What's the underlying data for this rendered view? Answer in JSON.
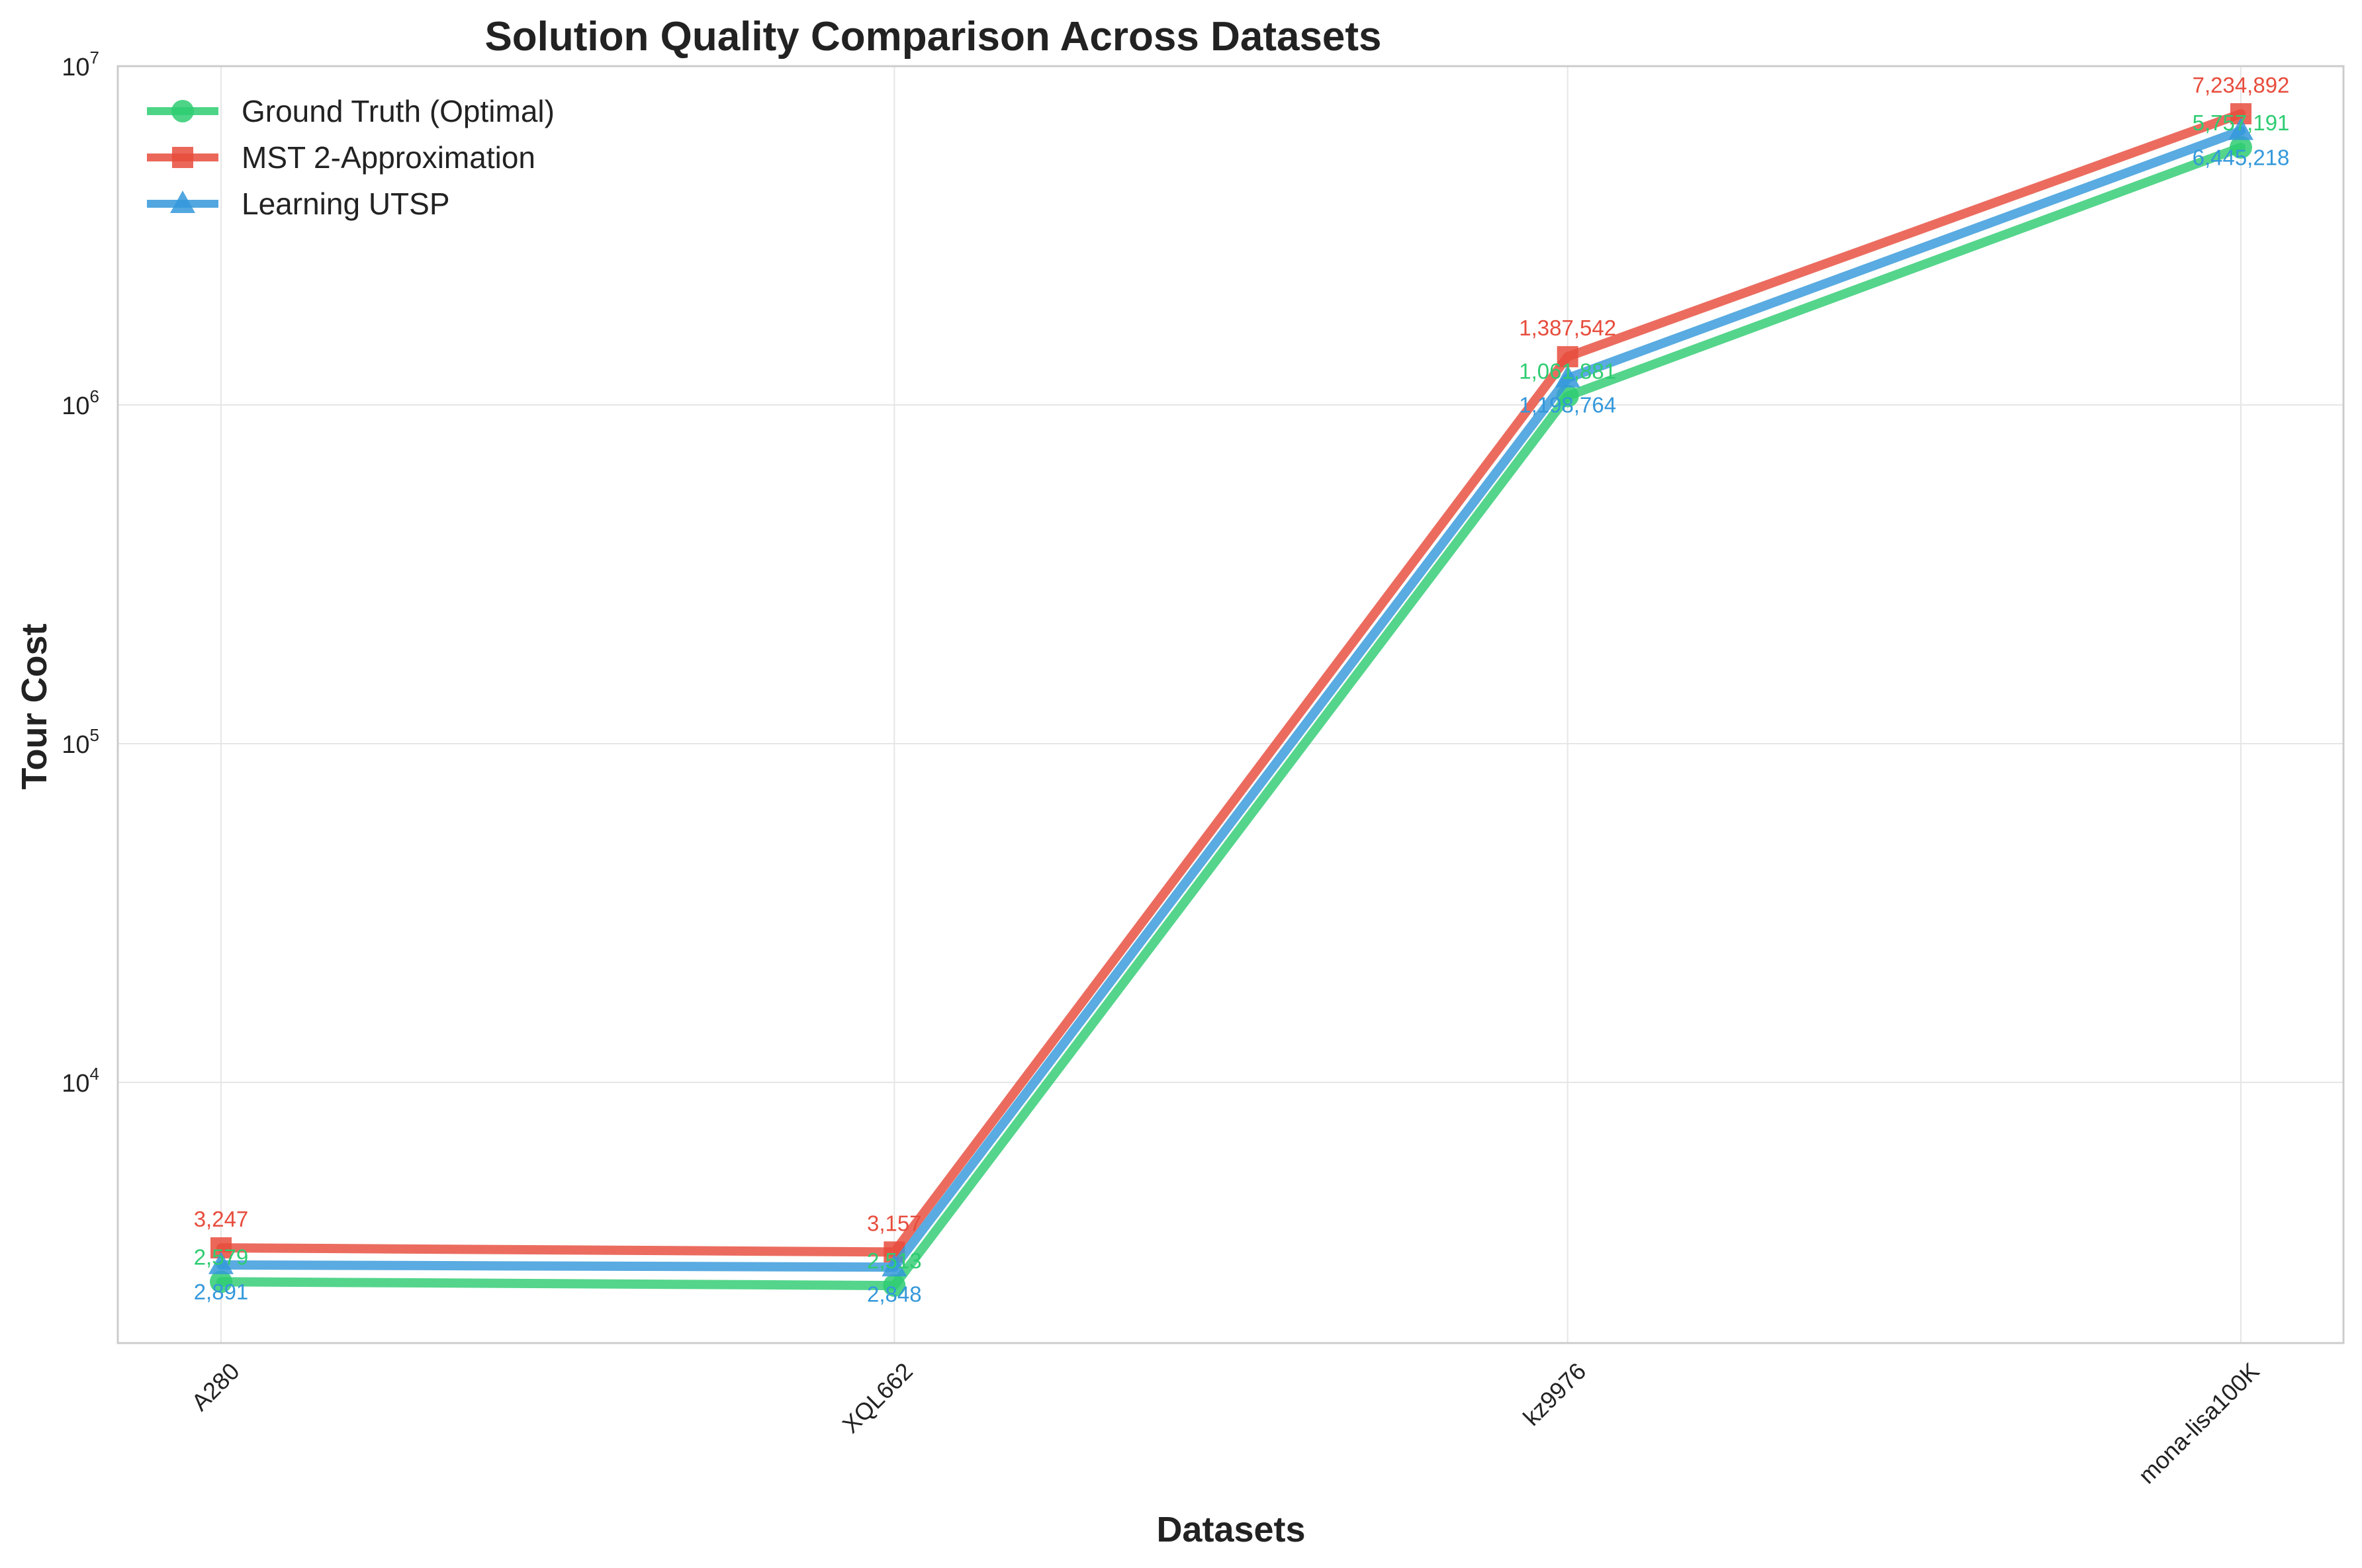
{
  "chart_data": {
    "type": "line",
    "title": "Solution Quality Comparison Across Datasets",
    "xlabel": "Datasets",
    "ylabel": "Tour Cost",
    "yscale": "log",
    "ylim": [
      1700,
      10000000
    ],
    "yticks": [
      {
        "base": "10",
        "exp": "4",
        "value": 10000
      },
      {
        "base": "10",
        "exp": "5",
        "value": 100000
      },
      {
        "base": "10",
        "exp": "6",
        "value": 1000000
      },
      {
        "base": "10",
        "exp": "7",
        "value": 10000000
      }
    ],
    "categories": [
      "A280",
      "XQL662",
      "kz9976",
      "mona-lisa100K"
    ],
    "grid": true,
    "legend_position": "top-left",
    "series": [
      {
        "name": "Ground Truth (Optimal)",
        "marker": "circle",
        "color": "#2ecc71",
        "values": [
          2579,
          2513,
          1061881,
          5757191
        ],
        "labels": [
          "2,579",
          "2,513",
          "1,061,881",
          "5,757,191"
        ]
      },
      {
        "name": "MST 2-Approximation",
        "marker": "square",
        "color": "#e74c3c",
        "values": [
          3247,
          3157,
          1387542,
          7234892
        ],
        "labels": [
          "3,247",
          "3,157",
          "1,387,542",
          "7,234,892"
        ]
      },
      {
        "name": "Learning UTSP",
        "marker": "triangle",
        "color": "#3498db",
        "values": [
          2891,
          2848,
          1198764,
          6445218
        ],
        "labels": [
          "2,891",
          "2,848",
          "1,198,764",
          "6,445,218"
        ]
      }
    ]
  }
}
